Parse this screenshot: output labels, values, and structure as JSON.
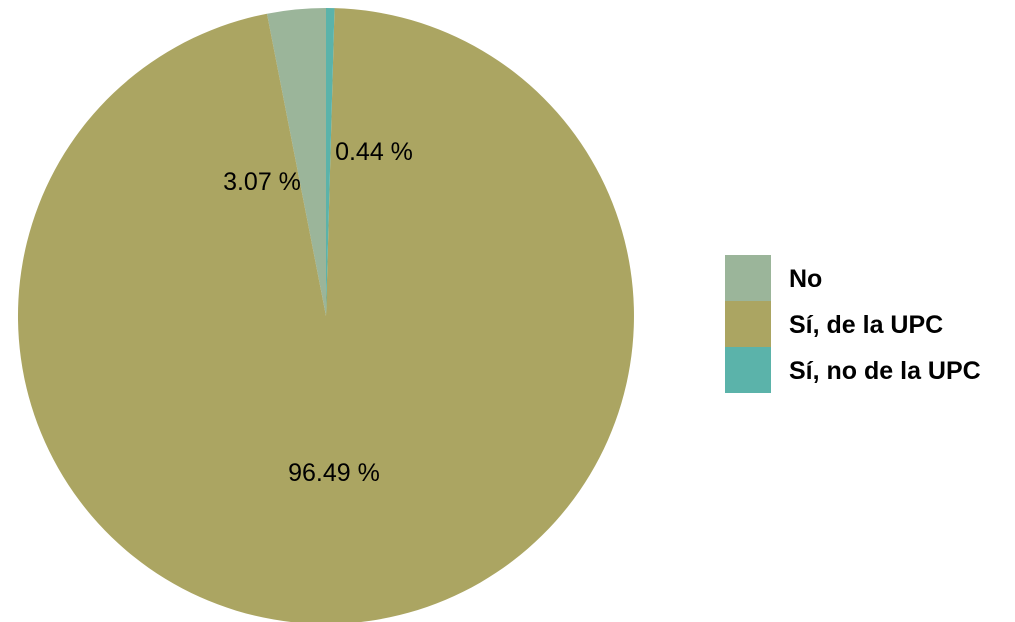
{
  "chart_data": {
    "type": "pie",
    "categories": [
      "No",
      "Sí, de la UPC",
      "Sí, no de la UPC"
    ],
    "values": [
      3.07,
      96.49,
      0.44
    ],
    "data_labels": [
      "3.07 %",
      "96.49 %",
      "0.44 %"
    ],
    "colors": [
      "#9bb59a",
      "#aba562",
      "#5bb3aa"
    ],
    "legend_position": "right",
    "start_angle": "12 o'clock",
    "direction": "counter-clockwise from No"
  }
}
